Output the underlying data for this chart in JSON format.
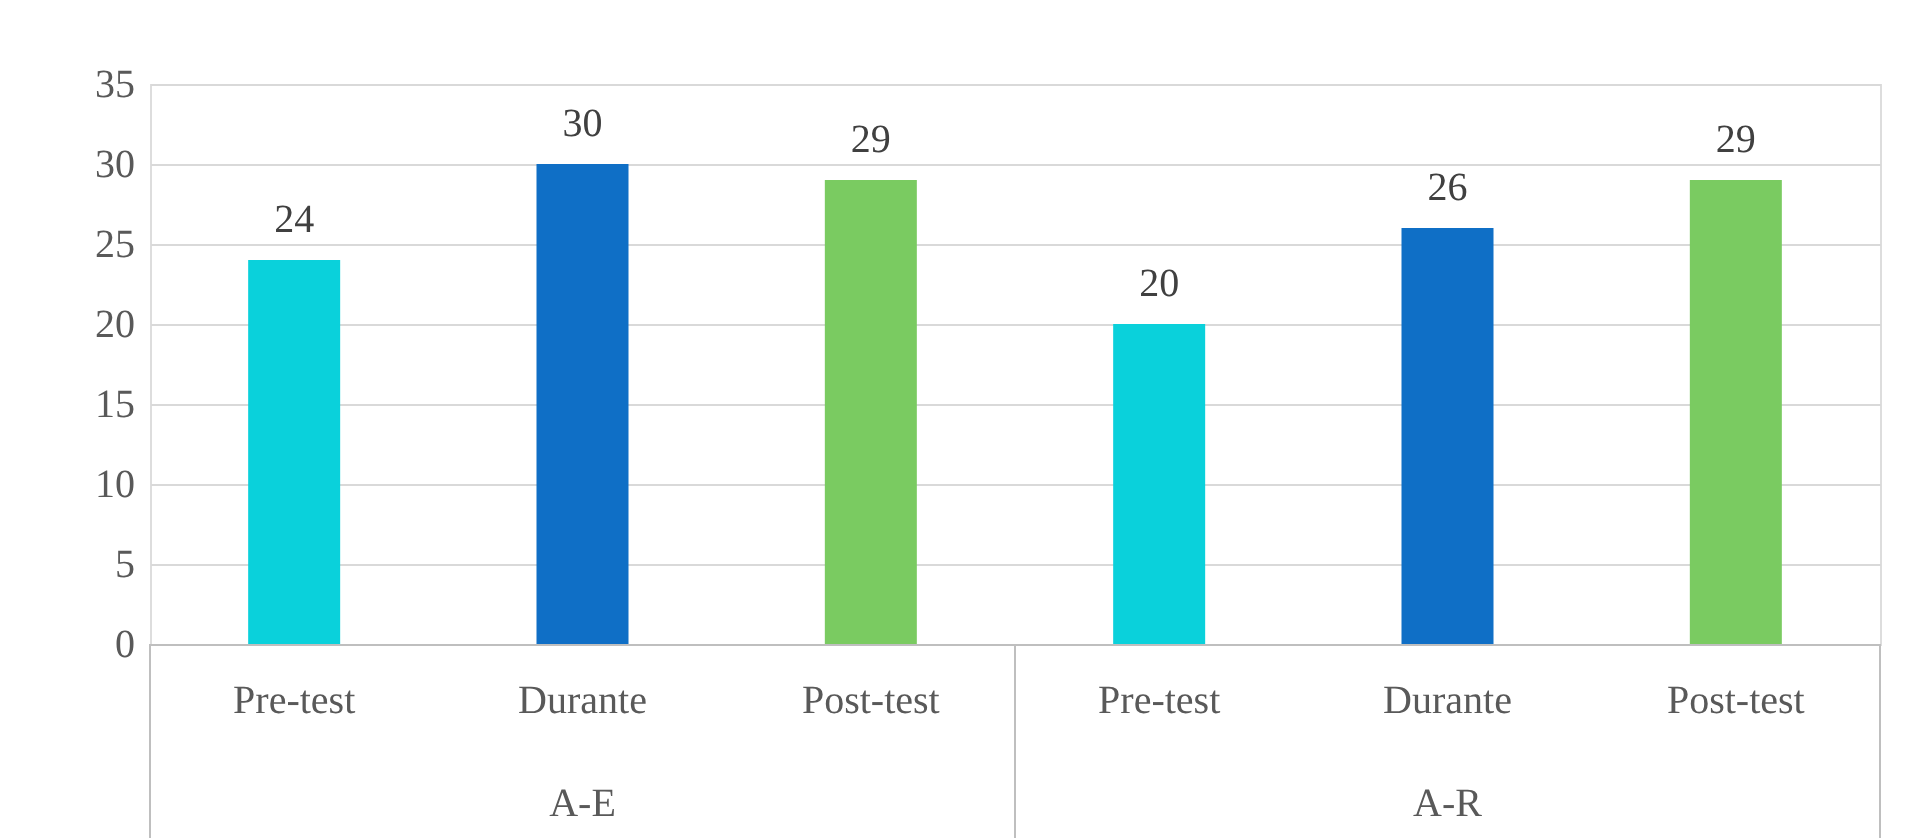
{
  "chart_data": {
    "type": "bar",
    "categories": [
      "Pre-test",
      "Durante",
      "Post-test",
      "Pre-test",
      "Durante",
      "Post-test"
    ],
    "values": [
      24,
      30,
      29,
      20,
      26,
      29
    ],
    "colors": [
      "#0ad1db",
      "#0f6fc6",
      "#7acb61",
      "#0ad1db",
      "#0f6fc6",
      "#7acb61"
    ],
    "annotations": [
      "A-E",
      "A-R"
    ],
    "data_labels": true,
    "ylim": [
      0,
      35
    ],
    "yticks": [
      0,
      5,
      10,
      15,
      20,
      25,
      30,
      35
    ],
    "grid": "y"
  }
}
